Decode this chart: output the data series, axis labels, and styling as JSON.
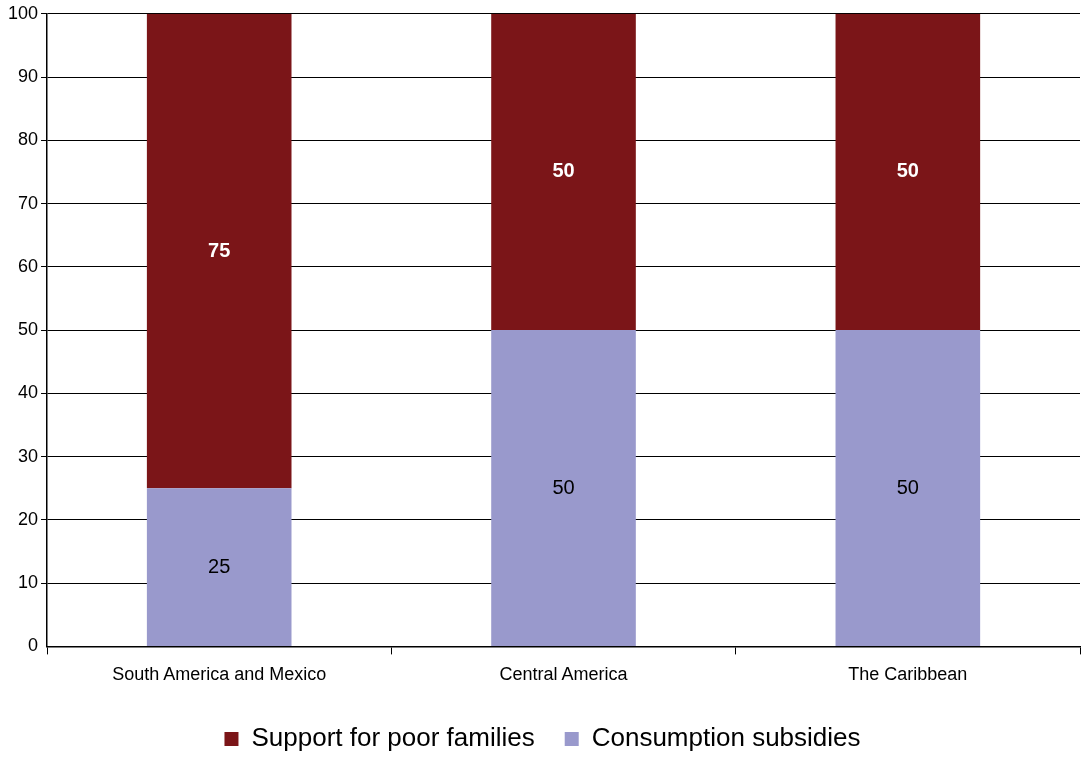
{
  "chart_data": {
    "type": "bar",
    "stacked": true,
    "categories": [
      "South America and Mexico",
      "Central America",
      "The Caribbean"
    ],
    "series": [
      {
        "name": "Consumption subsidies",
        "color": "#9999cc",
        "values": [
          25,
          50,
          50
        ]
      },
      {
        "name": "Support for poor families",
        "color": "#7b1518",
        "values": [
          75,
          50,
          50
        ]
      }
    ],
    "ylim": [
      0,
      100
    ],
    "yticks": [
      0,
      10,
      20,
      30,
      40,
      50,
      60,
      70,
      80,
      90,
      100
    ],
    "grid": "y",
    "legend": "bottom",
    "data_labels": true
  }
}
